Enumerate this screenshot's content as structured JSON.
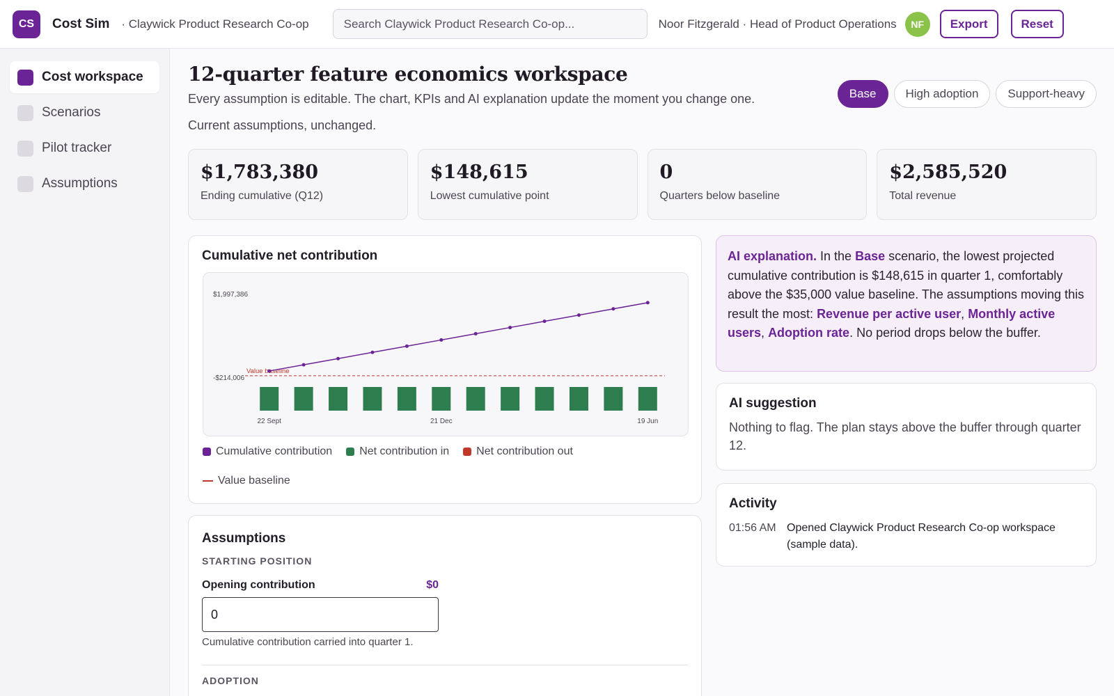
{
  "header": {
    "logo_initials": "CS",
    "app_name": "Cost Sim",
    "org_name": "· Claywick Product Research Co-op",
    "search_placeholder": "Search Claywick Product Research Co-op...",
    "user_line": "Noor Fitzgerald · Head of Product Operations",
    "avatar_initials": "NF",
    "export_label": "Export",
    "reset_label": "Reset"
  },
  "sidebar": {
    "items": [
      {
        "label": "Cost workspace",
        "active": true
      },
      {
        "label": "Scenarios",
        "active": false
      },
      {
        "label": "Pilot tracker",
        "active": false
      },
      {
        "label": "Assumptions",
        "active": false
      }
    ]
  },
  "main": {
    "title": "12-quarter feature economics workspace",
    "subtitle": "Every assumption is editable. The chart, KPIs and AI explanation update the moment you change one.",
    "status": "Current assumptions, unchanged.",
    "scenarios": [
      "Base",
      "High adoption",
      "Support-heavy"
    ],
    "active_scenario": "Base"
  },
  "kpis": [
    {
      "value": "$1,783,380",
      "label": "Ending cumulative (Q12)"
    },
    {
      "value": "$148,615",
      "label": "Lowest cumulative point"
    },
    {
      "value": "0",
      "label": "Quarters below baseline"
    },
    {
      "value": "$2,585,520",
      "label": "Total revenue"
    }
  ],
  "chart_card": {
    "title": "Cumulative net contribution"
  },
  "chart_data": {
    "type": "line",
    "title": "Cumulative net contribution",
    "y_tick_labels": [
      "$1,997,386",
      "-$214,006"
    ],
    "ylim": [
      -214006,
      1997386
    ],
    "x_tick_labels": [
      {
        "label": "22 Sept",
        "quarter": 1
      },
      {
        "label": "21 Dec",
        "quarter": 6
      },
      {
        "label": "19 Jun",
        "quarter": 12
      }
    ],
    "x": [
      1,
      2,
      3,
      4,
      5,
      6,
      7,
      8,
      9,
      10,
      11,
      12
    ],
    "series": [
      {
        "name": "Cumulative contribution",
        "kind": "line",
        "color": "#6b2495",
        "values": [
          148615,
          297231,
          445846,
          594461,
          743077,
          891692,
          1040307,
          1188922,
          1337538,
          1486153,
          1634768,
          1783380
        ]
      },
      {
        "name": "Net contribution in",
        "kind": "bar",
        "color": "#2e7d4f",
        "values": [
          148615,
          148615,
          148615,
          148615,
          148615,
          148615,
          148615,
          148615,
          148615,
          148615,
          148615,
          148615
        ]
      },
      {
        "name": "Net contribution out",
        "kind": "bar",
        "color": "#c0392b",
        "values": [
          0,
          0,
          0,
          0,
          0,
          0,
          0,
          0,
          0,
          0,
          0,
          0
        ]
      }
    ],
    "baseline": {
      "name": "Value baseline",
      "label": "Value baseline",
      "value": 35000,
      "color": "#c0392b"
    },
    "legend": [
      "Cumulative contribution",
      "Net contribution in",
      "Net contribution out",
      "Value baseline"
    ],
    "legend_position": "bottom",
    "grid": false
  },
  "assumptions": {
    "title": "Assumptions",
    "section_starting": "STARTING POSITION",
    "opening_label": "Opening contribution",
    "opening_display": "$0",
    "opening_input_value": "0",
    "opening_help": "Cumulative contribution carried into quarter 1.",
    "section_adoption": "ADOPTION"
  },
  "ai_explanation": {
    "lead": "AI explanation.",
    "t1": " In the ",
    "scenario": "Base",
    "t2": " scenario, the lowest projected cumulative contribution is $148,615 in quarter 1, comfortably above the $35,000 value baseline. The assumptions moving this result the most: ",
    "driver1": "Revenue per active user",
    "sep1": ", ",
    "driver2": "Monthly active users",
    "sep2": ", ",
    "driver3": "Adoption rate",
    "t3": ". No period drops below the buffer."
  },
  "ai_suggestion": {
    "title": "AI suggestion",
    "text": "Nothing to flag. The plan stays above the buffer through quarter 12."
  },
  "activity": {
    "title": "Activity",
    "items": [
      {
        "time": "01:56 AM",
        "text": "Opened Claywick Product Research Co-op workspace (sample data)."
      }
    ]
  },
  "colors": {
    "accent": "#6b2495",
    "positive": "#2e7d4f",
    "negative": "#c0392b",
    "avatar": "#8bc34a"
  }
}
